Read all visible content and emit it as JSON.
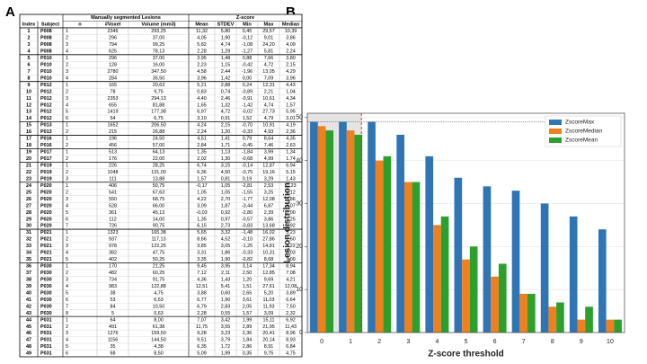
{
  "panel_labels": [
    "A",
    "B"
  ],
  "table": {
    "group_headers": [
      "Manually segmented Lesions",
      "Z-score"
    ],
    "columns": [
      "Index",
      "Subject",
      "n",
      "#Voxel",
      "Volume (mm3)",
      "Mean",
      "STDEV",
      "Min",
      "Max",
      "Median"
    ],
    "rows": [
      [
        "1",
        "P008",
        "1",
        "2346",
        "293,25",
        "11,32",
        "5,80",
        "0,45",
        "29,57",
        "10,39"
      ],
      [
        "2",
        "P008",
        "2",
        "296",
        "37,00",
        "4,05",
        "1,90",
        "-0,12",
        "9,01",
        "3,86"
      ],
      [
        "3",
        "P008",
        "3",
        "794",
        "99,25",
        "5,82",
        "4,74",
        "-1,08",
        "24,20",
        "4,09"
      ],
      [
        "4",
        "P008",
        "4",
        "625",
        "78,13",
        "2,28",
        "1,29",
        "-1,27",
        "5,81",
        "2,24"
      ],
      [
        "5",
        "P010",
        "1",
        "296",
        "37,00",
        "3,95",
        "1,48",
        "0,88",
        "7,66",
        "3,80"
      ],
      [
        "6",
        "P010",
        "2",
        "128",
        "16,00",
        "2,23",
        "1,15",
        "-0,42",
        "4,72",
        "2,15"
      ],
      [
        "7",
        "P010",
        "3",
        "2780",
        "347,50",
        "4,58",
        "2,44",
        "-1,96",
        "13,05",
        "4,29"
      ],
      [
        "8",
        "P010",
        "4",
        "284",
        "35,50",
        "3,96",
        "1,42",
        "0,00",
        "7,09",
        "3,96"
      ],
      [
        "9",
        "P012",
        "1",
        "165",
        "20,63",
        "5,21",
        "2,88",
        "0,24",
        "12,31",
        "4,43"
      ],
      [
        "10",
        "P012",
        "2",
        "78",
        "9,75",
        "0,83",
        "0,74",
        "-0,89",
        "2,21",
        "1,04"
      ],
      [
        "11",
        "P012",
        "3",
        "2353",
        "294,13",
        "4,40",
        "2,46",
        "-0,91",
        "10,61",
        "4,34"
      ],
      [
        "12",
        "P012",
        "4",
        "655",
        "81,88",
        "1,65",
        "1,32",
        "-1,42",
        "4,74",
        "1,57"
      ],
      [
        "13",
        "P012",
        "5",
        "1419",
        "177,38",
        "6,97",
        "4,72",
        "-0,02",
        "27,73",
        "5,95"
      ],
      [
        "14",
        "P012",
        "6",
        "54",
        "6,75",
        "3,10",
        "0,91",
        "1,52",
        "4,79",
        "3,01"
      ],
      [
        "15",
        "P013",
        "1",
        "1652",
        "206,50",
        "4,24",
        "2,15",
        "-0,70",
        "10,91",
        "4,19"
      ],
      [
        "16",
        "P013",
        "2",
        "215",
        "26,88",
        "2,24",
        "1,20",
        "-0,33",
        "4,93",
        "2,36"
      ],
      [
        "17",
        "P016",
        "1",
        "196",
        "24,50",
        "4,51",
        "1,41",
        "0,79",
        "8,64",
        "4,35"
      ],
      [
        "18",
        "P016",
        "2",
        "456",
        "57,00",
        "2,84",
        "1,71",
        "-0,45",
        "7,46",
        "2,63"
      ],
      [
        "19",
        "P017",
        "1",
        "513",
        "64,13",
        "1,35",
        "1,13",
        "-1,84",
        "3,99",
        "1,34"
      ],
      [
        "20",
        "P017",
        "2",
        "176",
        "22,00",
        "2,02",
        "1,30",
        "-0,68",
        "4,99",
        "1,74"
      ],
      [
        "21",
        "P019",
        "1",
        "226",
        "28,25",
        "6,74",
        "3,15",
        "-0,14",
        "12,87",
        "6,94"
      ],
      [
        "22",
        "P019",
        "2",
        "1048",
        "131,00",
        "6,36",
        "4,50",
        "-0,75",
        "19,16",
        "5,15"
      ],
      [
        "23",
        "P019",
        "3",
        "111",
        "13,88",
        "1,57",
        "0,81",
        "0,19",
        "3,29",
        "1,43"
      ],
      [
        "24",
        "P020",
        "1",
        "406",
        "50,75",
        "-0,17",
        "1,05",
        "-2,81",
        "2,53",
        "-0,23"
      ],
      [
        "25",
        "P020",
        "2",
        "541",
        "67,63",
        "1,05",
        "1,05",
        "-1,55",
        "3,25",
        "1,12"
      ],
      [
        "26",
        "P020",
        "3",
        "550",
        "68,75",
        "4,22",
        "2,70",
        "-1,77",
        "12,08",
        "3,86"
      ],
      [
        "27",
        "P020",
        "4",
        "528",
        "66,00",
        "3,09",
        "1,87",
        "-3,44",
        "6,87",
        "3,07"
      ],
      [
        "28",
        "P020",
        "5",
        "361",
        "45,13",
        "-0,03",
        "0,92",
        "-2,80",
        "2,39",
        "0,00"
      ],
      [
        "29",
        "P020",
        "6",
        "112",
        "14,00",
        "1,35",
        "0,97",
        "-0,57",
        "3,86",
        "1,25"
      ],
      [
        "30",
        "P020",
        "7",
        "726",
        "90,75",
        "6,15",
        "2,73",
        "-0,83",
        "13,68",
        "5,92"
      ],
      [
        "31",
        "P021",
        "1",
        "1323",
        "165,38",
        "5,65",
        "3,32",
        "-1,48",
        "16,02",
        "5,23"
      ],
      [
        "32",
        "P021",
        "2",
        "937",
        "117,13",
        "8,66",
        "4,52",
        "-0,10",
        "27,86",
        "7,60"
      ],
      [
        "33",
        "P021",
        "3",
        "978",
        "122,25",
        "3,85",
        "3,05",
        "-1,25",
        "14,81",
        "3,22"
      ],
      [
        "34",
        "P021",
        "4",
        "382",
        "47,75",
        "3,31",
        "1,86",
        "-0,33",
        "10,31",
        "3,03"
      ],
      [
        "35",
        "P021",
        "5",
        "402",
        "50,25",
        "3,35",
        "1,90",
        "-0,82",
        "8,68",
        "3,09"
      ],
      [
        "36",
        "P030",
        "1",
        "170",
        "21,25",
        "9,45",
        "3,95",
        "3,14",
        "17,34",
        "8,94"
      ],
      [
        "37",
        "P030",
        "2",
        "482",
        "60,25",
        "7,12",
        "2,11",
        "2,50",
        "12,85",
        "7,08"
      ],
      [
        "38",
        "P030",
        "3",
        "734",
        "91,75",
        "4,36",
        "1,43",
        "1,20",
        "9,69",
        "4,21"
      ],
      [
        "39",
        "P030",
        "4",
        "983",
        "122,88",
        "12,51",
        "5,41",
        "1,51",
        "27,61",
        "12,08"
      ],
      [
        "40",
        "P030",
        "5",
        "38",
        "4,75",
        "3,88",
        "0,60",
        "2,65",
        "5,20",
        "3,89"
      ],
      [
        "41",
        "P030",
        "6",
        "53",
        "6,63",
        "6,77",
        "1,90",
        "3,61",
        "11,03",
        "6,64"
      ],
      [
        "42",
        "P030",
        "7",
        "84",
        "10,50",
        "6,79",
        "2,83",
        "2,05",
        "11,93",
        "7,50"
      ],
      [
        "43",
        "P030",
        "8",
        "5",
        "0,63",
        "2,28",
        "0,55",
        "1,57",
        "3,09",
        "2,32"
      ],
      [
        "44",
        "P031",
        "1",
        "64",
        "8,00",
        "7,07",
        "3,42",
        "1,99",
        "15,11",
        "6,92"
      ],
      [
        "45",
        "P031",
        "2",
        "491",
        "61,38",
        "11,75",
        "3,55",
        "2,89",
        "21,95",
        "11,43"
      ],
      [
        "46",
        "P031",
        "3",
        "1276",
        "159,50",
        "9,28",
        "3,23",
        "2,36",
        "20,41",
        "8,96"
      ],
      [
        "47",
        "P031",
        "4",
        "1156",
        "144,50",
        "9,51",
        "3,79",
        "1,84",
        "20,14",
        "8,93"
      ],
      [
        "48",
        "P031",
        "5",
        "35",
        "4,38",
        "6,35",
        "1,72",
        "2,86",
        "8,91",
        "6,84"
      ],
      [
        "49",
        "P031",
        "6",
        "68",
        "8,50",
        "5,09",
        "1,99",
        "0,35",
        "9,75",
        "4,75"
      ]
    ]
  },
  "chart_data": {
    "type": "bar",
    "x_label": "Z-score threshold",
    "y_label": "Lesion distribution",
    "categories": [
      "0",
      "1",
      "2",
      "3",
      "4",
      "5",
      "6",
      "7",
      "8",
      "9",
      "10"
    ],
    "series": [
      {
        "name": "ZscoreMax",
        "color": "#2f75b5",
        "values": [
          49,
          49,
          49,
          46,
          41,
          36,
          34,
          33,
          30,
          27,
          24
        ]
      },
      {
        "name": "ZscoreMedian",
        "color": "#f07f1d",
        "values": [
          48,
          47,
          40,
          35,
          25,
          17,
          13,
          9,
          6,
          3,
          3
        ]
      },
      {
        "name": "ZscoreMean",
        "color": "#2ca02c",
        "values": [
          47,
          46,
          41,
          35,
          27,
          20,
          16,
          9,
          7,
          6,
          3
        ]
      }
    ],
    "ylim": [
      0,
      51
    ],
    "yticks": [
      0,
      10,
      20,
      30,
      40,
      50
    ],
    "grid": true,
    "legend": "top-right"
  }
}
